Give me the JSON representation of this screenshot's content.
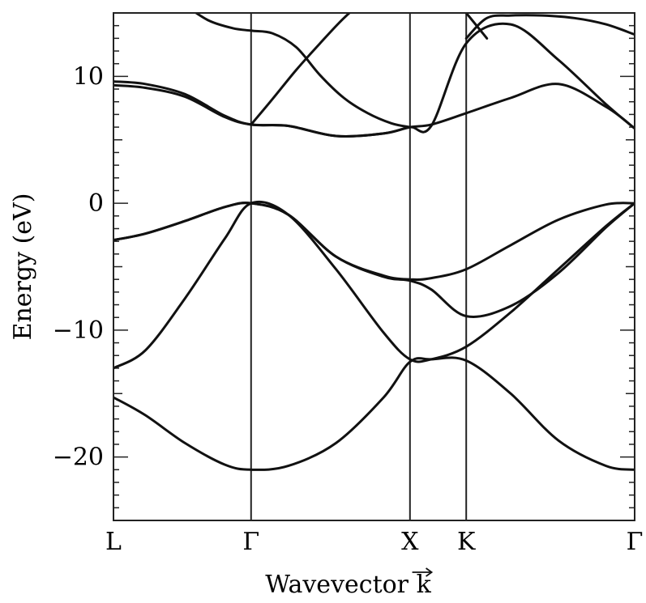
{
  "chart_data": {
    "type": "line",
    "title": "",
    "xlabel": "Wavevector k",
    "ylabel": "Energy (eV)",
    "ylim": [
      -25,
      15
    ],
    "y_ticks": [
      "10",
      "0",
      "−10",
      "−20"
    ],
    "y_tick_values": [
      10,
      0,
      -10,
      -20
    ],
    "x_labels": [
      "L",
      "Γ",
      "X",
      "K",
      "Γ"
    ],
    "x_label_positions": [
      0,
      0.866,
      1.866,
      2.22,
      3.28
    ],
    "k_range": [
      0,
      3.28
    ],
    "grid": false,
    "legend": "none",
    "series": [
      {
        "x": [
          0,
          0.2,
          0.45,
          0.7,
          0.866,
          1.1,
          1.4,
          1.7,
          1.866,
          2.0,
          2.22,
          2.5,
          2.8,
          3.1,
          3.28
        ],
        "y": [
          -15.3,
          -16.7,
          -18.9,
          -20.6,
          -21,
          -20.7,
          -18.9,
          -15.3,
          -12.5,
          -12.3,
          -12.4,
          -15,
          -18.7,
          -20.7,
          -21
        ]
      },
      {
        "x": [
          0,
          0.2,
          0.45,
          0.7,
          0.866,
          1.1,
          1.4,
          1.7,
          1.866,
          2.0,
          2.22,
          2.5,
          2.8,
          3.1,
          3.28
        ],
        "y": [
          -13,
          -11.6,
          -7.5,
          -2.8,
          0,
          -0.9,
          -5.2,
          -10.2,
          -12.3,
          -12.3,
          -11.3,
          -8.6,
          -5.2,
          -1.8,
          0
        ]
      },
      {
        "x": [
          0,
          0.2,
          0.45,
          0.7,
          0.866,
          1.1,
          1.4,
          1.7,
          1.866,
          2.0,
          2.22,
          2.5,
          2.8,
          3.1,
          3.28
        ],
        "y": [
          -2.9,
          -2.4,
          -1.4,
          -0.3,
          0,
          -0.9,
          -4.2,
          -5.8,
          -6.1,
          -6.8,
          -8.9,
          -8.1,
          -5.5,
          -1.9,
          0
        ]
      },
      {
        "x": [
          0,
          0.2,
          0.45,
          0.7,
          0.866,
          1.1,
          1.4,
          1.7,
          1.866,
          2.0,
          2.22,
          2.5,
          2.8,
          3.1,
          3.28
        ],
        "y": [
          -2.9,
          -2.4,
          -1.4,
          -0.3,
          0,
          -0.9,
          -4.2,
          -5.7,
          -6,
          -5.9,
          -5.2,
          -3.3,
          -1.3,
          -0.1,
          0
        ]
      },
      {
        "x": [
          0,
          0.2,
          0.45,
          0.7,
          0.866,
          1.1,
          1.4,
          1.7,
          1.866,
          2.0,
          2.22,
          2.5,
          2.8,
          3.1,
          3.28
        ],
        "y": [
          9.6,
          9.4,
          8.6,
          6.9,
          6.2,
          6.1,
          5.3,
          5.5,
          6,
          6.2,
          7.1,
          8.3,
          9.4,
          7.6,
          5.9
        ]
      },
      {
        "x": [
          0,
          0.2,
          0.45,
          0.7,
          0.866,
          1.1,
          1.4,
          1.7,
          1.866,
          2.0,
          2.22,
          2.5,
          2.8,
          3.1,
          3.28
        ],
        "y": [
          9.3,
          9.1,
          8.4,
          6.8,
          6.2,
          6.1,
          5.3,
          5.5,
          6,
          6.1,
          12.6,
          14.1,
          11.3,
          7.8,
          5.9
        ]
      },
      {
        "x": [
          0.866,
          1.0,
          1.15,
          1.3,
          1.45,
          1.6,
          1.75,
          1.866,
          2.0,
          2.15,
          2.22,
          2.35
        ],
        "y": [
          6.2,
          8.2,
          10.5,
          12.6,
          14.6,
          16.2,
          17.4,
          18.0,
          17.7,
          16.0,
          15.0,
          13.0
        ]
      },
      {
        "x": [
          0.45,
          0.6,
          0.75,
          0.866,
          1.0,
          1.15,
          1.3,
          1.45,
          1.6,
          1.75,
          1.866
        ],
        "y": [
          15.6,
          14.4,
          13.8,
          13.6,
          13.4,
          12.3,
          10.1,
          8.3,
          7.1,
          6.3,
          6.0
        ]
      },
      {
        "x": [
          2.22,
          2.35,
          2.5,
          2.7,
          2.9,
          3.1,
          3.28
        ],
        "y": [
          13.0,
          14.6,
          14.8,
          14.8,
          14.6,
          14.1,
          13.3
        ]
      }
    ]
  }
}
